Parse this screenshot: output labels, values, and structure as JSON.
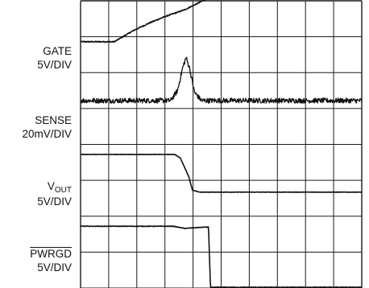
{
  "chart_data": {
    "type": "line",
    "grid": true,
    "grid_divisions": {
      "x": 10,
      "y": 8
    },
    "x_range_div": [
      0,
      10
    ],
    "y_range_div": [
      0,
      8
    ],
    "series": [
      {
        "name_parts": [
          "GATE"
        ],
        "scale": "5V/DIV",
        "overline": false,
        "points": [
          [
            0,
            6.86
          ],
          [
            1.2,
            6.86
          ],
          [
            1.9,
            7.18
          ],
          [
            2.5,
            7.4
          ],
          [
            3,
            7.56
          ],
          [
            3.7,
            7.75
          ],
          [
            4.5,
            8.06
          ],
          [
            5,
            8.22
          ],
          [
            5.5,
            8.42
          ],
          [
            6.1,
            8.75
          ],
          [
            10,
            8.75
          ]
        ],
        "noise": 0.015
      },
      {
        "name_parts": [
          "SENSE"
        ],
        "scale": "20mV/DIV",
        "overline": false,
        "points": [
          [
            0,
            5.22
          ],
          [
            3.2,
            5.22
          ],
          [
            3.45,
            5.5
          ],
          [
            3.62,
            6.1
          ],
          [
            3.75,
            6.42
          ],
          [
            3.88,
            6.12
          ],
          [
            4.05,
            5.45
          ],
          [
            4.3,
            5.22
          ],
          [
            10,
            5.22
          ]
        ],
        "noise": 0.07
      },
      {
        "name_parts": [
          "V",
          "OUT"
        ],
        "scale": "5V/DIV",
        "overline": false,
        "points": [
          [
            0,
            3.72
          ],
          [
            3.35,
            3.72
          ],
          [
            3.55,
            3.62
          ],
          [
            3.85,
            3.1
          ],
          [
            3.98,
            2.72
          ],
          [
            4.25,
            2.67
          ],
          [
            10,
            2.67
          ]
        ],
        "noise": 0.006
      },
      {
        "name_parts": [
          "PWRGD"
        ],
        "scale": "5V/DIV",
        "overline": true,
        "points": [
          [
            0,
            1.72
          ],
          [
            3.3,
            1.72
          ],
          [
            3.7,
            1.66
          ],
          [
            4.3,
            1.69
          ],
          [
            4.55,
            1.7
          ],
          [
            4.62,
            0.02
          ],
          [
            10,
            0.02
          ]
        ],
        "noise": 0.008
      }
    ]
  }
}
